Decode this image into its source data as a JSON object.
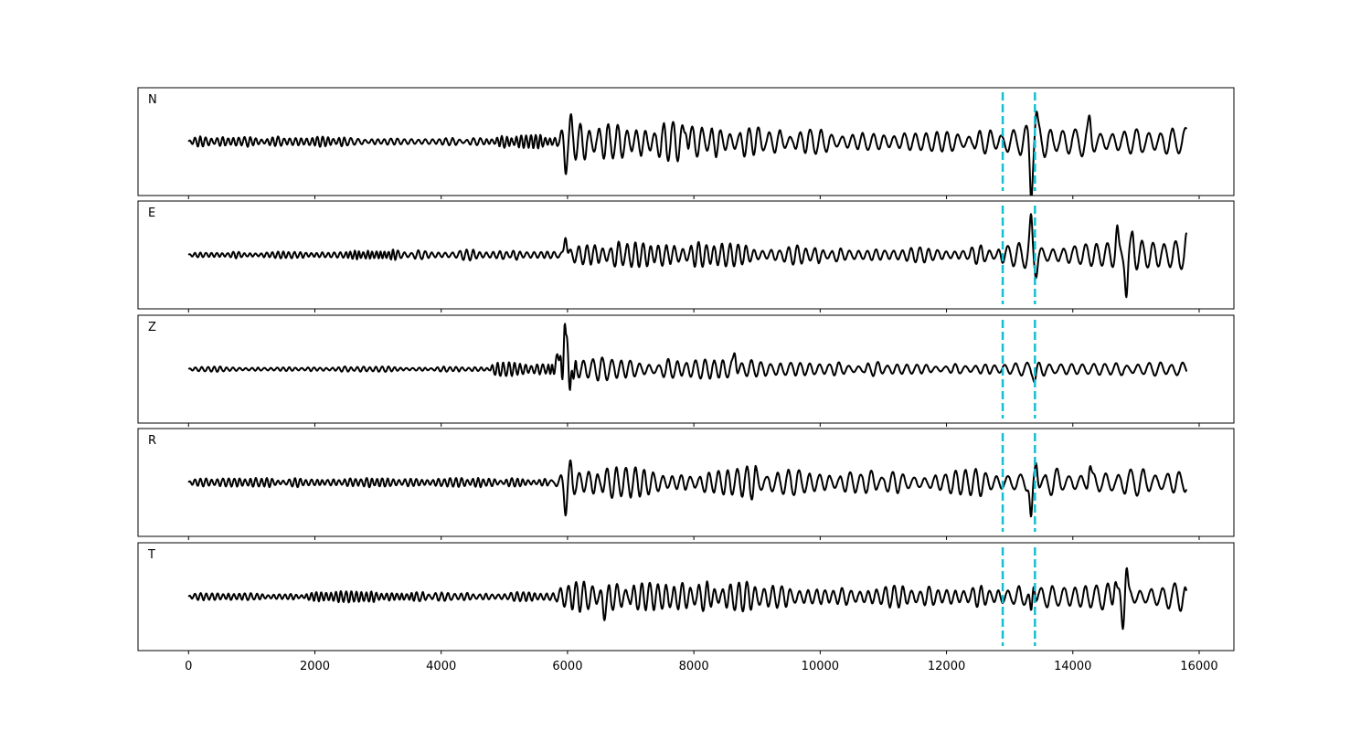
{
  "chart_data": {
    "type": "line",
    "xlim": [
      -800,
      16550
    ],
    "x_range": [
      0,
      15800
    ],
    "x_ticks": [
      {
        "value": 0,
        "label": "0"
      },
      {
        "value": 2000,
        "label": "2000"
      },
      {
        "value": 4000,
        "label": "4000"
      },
      {
        "value": 6000,
        "label": "6000"
      },
      {
        "value": 8000,
        "label": "8000"
      },
      {
        "value": 10000,
        "label": "10000"
      },
      {
        "value": 12000,
        "label": "12000"
      },
      {
        "value": 14000,
        "label": "14000"
      },
      {
        "value": 16000,
        "label": "16000"
      }
    ],
    "markers": [
      {
        "x": 12890,
        "color": "#17becf"
      },
      {
        "x": 13400,
        "color": "#17becf"
      }
    ],
    "trace_color": "#000000",
    "grid": false,
    "panels": [
      {
        "label": "N",
        "key_points": [
          {
            "x": 0,
            "y": 0
          },
          {
            "x": 5900,
            "y": 0.05
          },
          {
            "x": 5970,
            "y": -0.55
          },
          {
            "x": 6050,
            "y": 0.3
          },
          {
            "x": 7880,
            "y": 0.5
          },
          {
            "x": 13340,
            "y": -1.2
          },
          {
            "x": 13420,
            "y": 0.6
          },
          {
            "x": 14270,
            "y": 0.4
          },
          {
            "x": 15800,
            "y": 0.1
          }
        ],
        "segments": [
          {
            "x": [
              0,
              2500
            ],
            "amp": 0.12,
            "period": 90
          },
          {
            "x": [
              2500,
              4700
            ],
            "amp": 0.08,
            "period": 110
          },
          {
            "x": [
              4700,
              5850
            ],
            "amp": 0.15,
            "period": 80
          },
          {
            "x": [
              5850,
              9000
            ],
            "amp": 0.4,
            "period": 150
          },
          {
            "x": [
              9000,
              12900
            ],
            "amp": 0.25,
            "period": 170
          },
          {
            "x": [
              12900,
              15800
            ],
            "amp": 0.35,
            "period": 200
          }
        ]
      },
      {
        "label": "E",
        "key_points": [
          {
            "x": 0,
            "y": 0
          },
          {
            "x": 5970,
            "y": 0.55
          },
          {
            "x": 13340,
            "y": 0.8
          },
          {
            "x": 13420,
            "y": -0.35
          },
          {
            "x": 14700,
            "y": 0.65
          },
          {
            "x": 14850,
            "y": -0.9
          },
          {
            "x": 14950,
            "y": 0.35
          },
          {
            "x": 15800,
            "y": 0.25
          }
        ],
        "segments": [
          {
            "x": [
              0,
              2500
            ],
            "amp": 0.08,
            "period": 90
          },
          {
            "x": [
              2500,
              3300
            ],
            "amp": 0.15,
            "period": 70
          },
          {
            "x": [
              3300,
              5800
            ],
            "amp": 0.12,
            "period": 110
          },
          {
            "x": [
              5800,
              9000
            ],
            "amp": 0.3,
            "period": 130
          },
          {
            "x": [
              9000,
              12900
            ],
            "amp": 0.22,
            "period": 140
          },
          {
            "x": [
              12900,
              15800
            ],
            "amp": 0.3,
            "period": 180
          }
        ]
      },
      {
        "label": "Z",
        "key_points": [
          {
            "x": 0,
            "y": 0
          },
          {
            "x": 5850,
            "y": 0.5
          },
          {
            "x": 5970,
            "y": 1.3
          },
          {
            "x": 6050,
            "y": -0.4
          },
          {
            "x": 8650,
            "y": 0.45
          },
          {
            "x": 13400,
            "y": -0.25
          },
          {
            "x": 15800,
            "y": 0.05
          }
        ],
        "segments": [
          {
            "x": [
              0,
              4700
            ],
            "amp": 0.06,
            "period": 100
          },
          {
            "x": [
              4700,
              5700
            ],
            "amp": 0.15,
            "period": 90
          },
          {
            "x": [
              5700,
              6150
            ],
            "amp": 0.35,
            "period": 60
          },
          {
            "x": [
              6150,
              9000
            ],
            "amp": 0.25,
            "period": 150
          },
          {
            "x": [
              9000,
              12900
            ],
            "amp": 0.15,
            "period": 160
          },
          {
            "x": [
              12900,
              15800
            ],
            "amp": 0.15,
            "period": 180
          }
        ]
      },
      {
        "label": "R",
        "key_points": [
          {
            "x": 0,
            "y": 0
          },
          {
            "x": 5970,
            "y": -0.6
          },
          {
            "x": 6050,
            "y": 0.3
          },
          {
            "x": 13340,
            "y": -1.05
          },
          {
            "x": 13420,
            "y": 0.55
          },
          {
            "x": 14270,
            "y": 0.45
          },
          {
            "x": 15800,
            "y": 0.05
          }
        ],
        "segments": [
          {
            "x": [
              0,
              5700
            ],
            "amp": 0.1,
            "period": 90
          },
          {
            "x": [
              5700,
              9000
            ],
            "amp": 0.35,
            "period": 150
          },
          {
            "x": [
              9000,
              12900
            ],
            "amp": 0.28,
            "period": 170
          },
          {
            "x": [
              12900,
              15800
            ],
            "amp": 0.3,
            "period": 200
          }
        ]
      },
      {
        "label": "T",
        "key_points": [
          {
            "x": 0,
            "y": 0
          },
          {
            "x": 6580,
            "y": -0.45
          },
          {
            "x": 13340,
            "y": -0.55
          },
          {
            "x": 13380,
            "y": 0.45
          },
          {
            "x": 14670,
            "y": 0.5
          },
          {
            "x": 14790,
            "y": -0.75
          },
          {
            "x": 14850,
            "y": 0.8
          },
          {
            "x": 15800,
            "y": -0.2
          }
        ],
        "segments": [
          {
            "x": [
              0,
              1800
            ],
            "amp": 0.08,
            "period": 90
          },
          {
            "x": [
              1800,
              3600
            ],
            "amp": 0.14,
            "period": 80
          },
          {
            "x": [
              3600,
              5800
            ],
            "amp": 0.1,
            "period": 100
          },
          {
            "x": [
              5800,
              9000
            ],
            "amp": 0.32,
            "period": 130
          },
          {
            "x": [
              9000,
              12900
            ],
            "amp": 0.25,
            "period": 140
          },
          {
            "x": [
              12900,
              15800
            ],
            "amp": 0.3,
            "period": 180
          }
        ]
      }
    ]
  }
}
